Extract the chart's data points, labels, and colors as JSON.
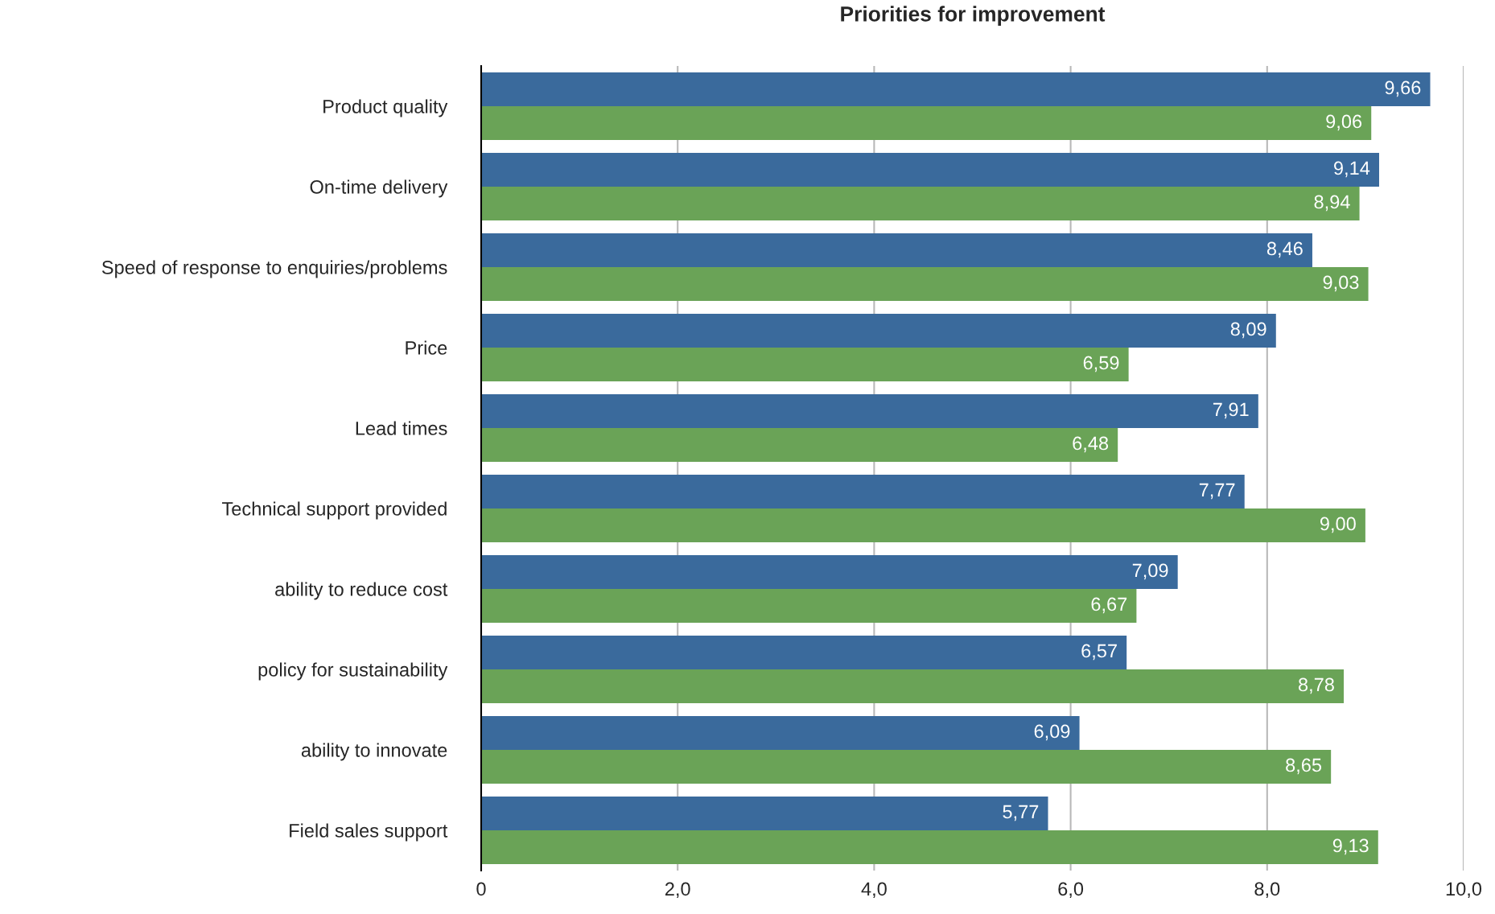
{
  "chart_data": {
    "type": "bar",
    "orientation": "horizontal",
    "title": "Priorities for improvement",
    "categories": [
      "Product quality",
      "On-time delivery",
      "Speed of response to enquiries/problems",
      "Price",
      "Lead times",
      "Technical support provided",
      "ability to reduce cost",
      "policy for sustainability",
      "ability to innovate",
      "Field sales support"
    ],
    "series": [
      {
        "color": "#3a6a9c",
        "values": [
          9.66,
          9.14,
          8.46,
          8.09,
          7.91,
          7.77,
          7.09,
          6.57,
          6.09,
          5.77
        ],
        "value_labels": [
          "9,66",
          "9,14",
          "8,46",
          "8,09",
          "7,91",
          "7,77",
          "7,09",
          "6,57",
          "6,09",
          "5,77"
        ]
      },
      {
        "color": "#6aa357",
        "values": [
          9.06,
          8.94,
          9.03,
          6.59,
          6.48,
          9.0,
          6.67,
          8.78,
          8.65,
          9.13
        ],
        "value_labels": [
          "9,06",
          "8,94",
          "9,03",
          "6,59",
          "6,48",
          "9,00",
          "6,67",
          "8,78",
          "8,65",
          "9,13"
        ]
      }
    ],
    "xlim": [
      0,
      10
    ],
    "xticks": [
      0,
      {
        "value": 2,
        "label": "2,0"
      },
      {
        "value": 4,
        "label": "4,0"
      },
      {
        "value": 6,
        "label": "6,0"
      },
      {
        "value": 8,
        "label": "8,0"
      },
      {
        "value": 10,
        "label": "10,0"
      }
    ],
    "grid": "x"
  }
}
